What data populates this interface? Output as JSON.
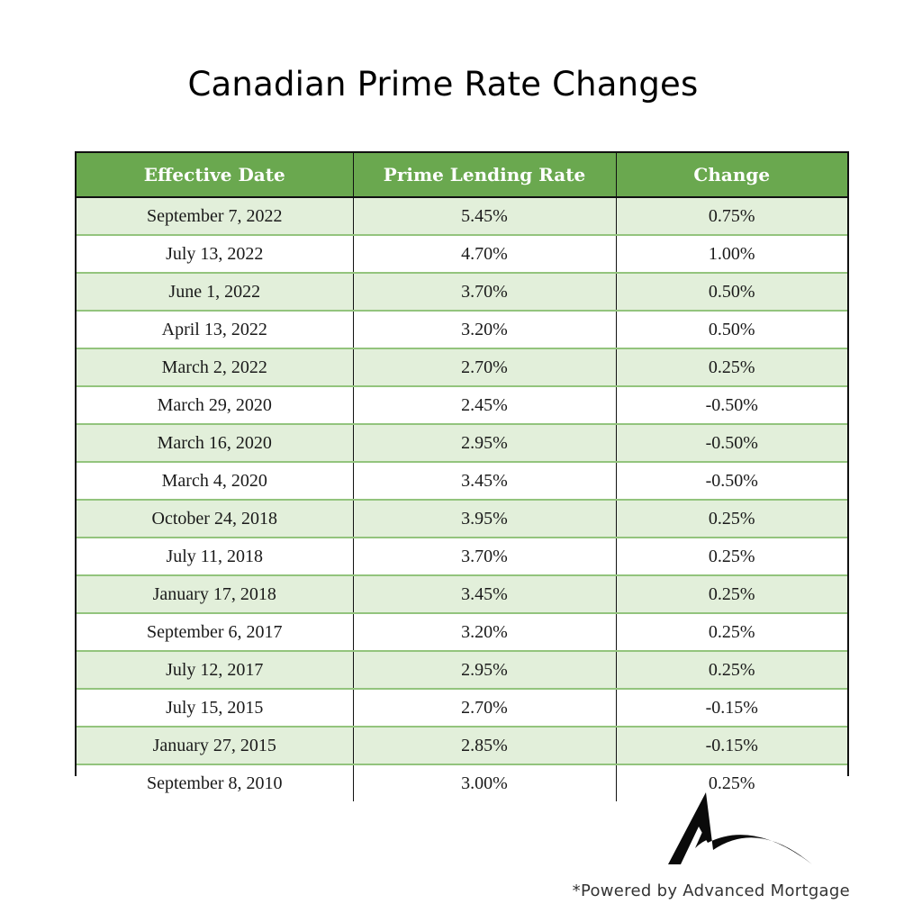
{
  "title": "Canadian Prime Rate Changes",
  "table": {
    "headers": [
      "Effective Date",
      "Prime Lending Rate",
      "Change"
    ],
    "rows": [
      [
        "September 7, 2022",
        "5.45%",
        "0.75%"
      ],
      [
        "July 13, 2022",
        "4.70%",
        "1.00%"
      ],
      [
        "June 1, 2022",
        "3.70%",
        "0.50%"
      ],
      [
        "April 13, 2022",
        "3.20%",
        "0.50%"
      ],
      [
        "March 2, 2022",
        "2.70%",
        "0.25%"
      ],
      [
        "March 29, 2020",
        "2.45%",
        "-0.50%"
      ],
      [
        "March 16, 2020",
        "2.95%",
        "-0.50%"
      ],
      [
        "March 4, 2020",
        "3.45%",
        "-0.50%"
      ],
      [
        "October 24, 2018",
        "3.95%",
        "0.25%"
      ],
      [
        "July 11, 2018",
        "3.70%",
        "0.25%"
      ],
      [
        "January 17, 2018",
        "3.45%",
        "0.25%"
      ],
      [
        "September 6, 2017",
        "3.20%",
        "0.25%"
      ],
      [
        "July 12, 2017",
        "2.95%",
        "0.25%"
      ],
      [
        "July 15, 2015",
        "2.70%",
        "-0.15%"
      ],
      [
        "January 27, 2015",
        "2.85%",
        "-0.15%"
      ],
      [
        "September 8, 2010",
        "3.00%",
        "0.25%"
      ]
    ]
  },
  "footer": "*Powered by Advanced Mortgage",
  "logo": {
    "icon": "advanced-mortgage-logo-icon"
  },
  "colors": {
    "header_bg": "#6aa84f",
    "row_alt_bg": "#e2efda",
    "row_divider": "#93c47d"
  }
}
